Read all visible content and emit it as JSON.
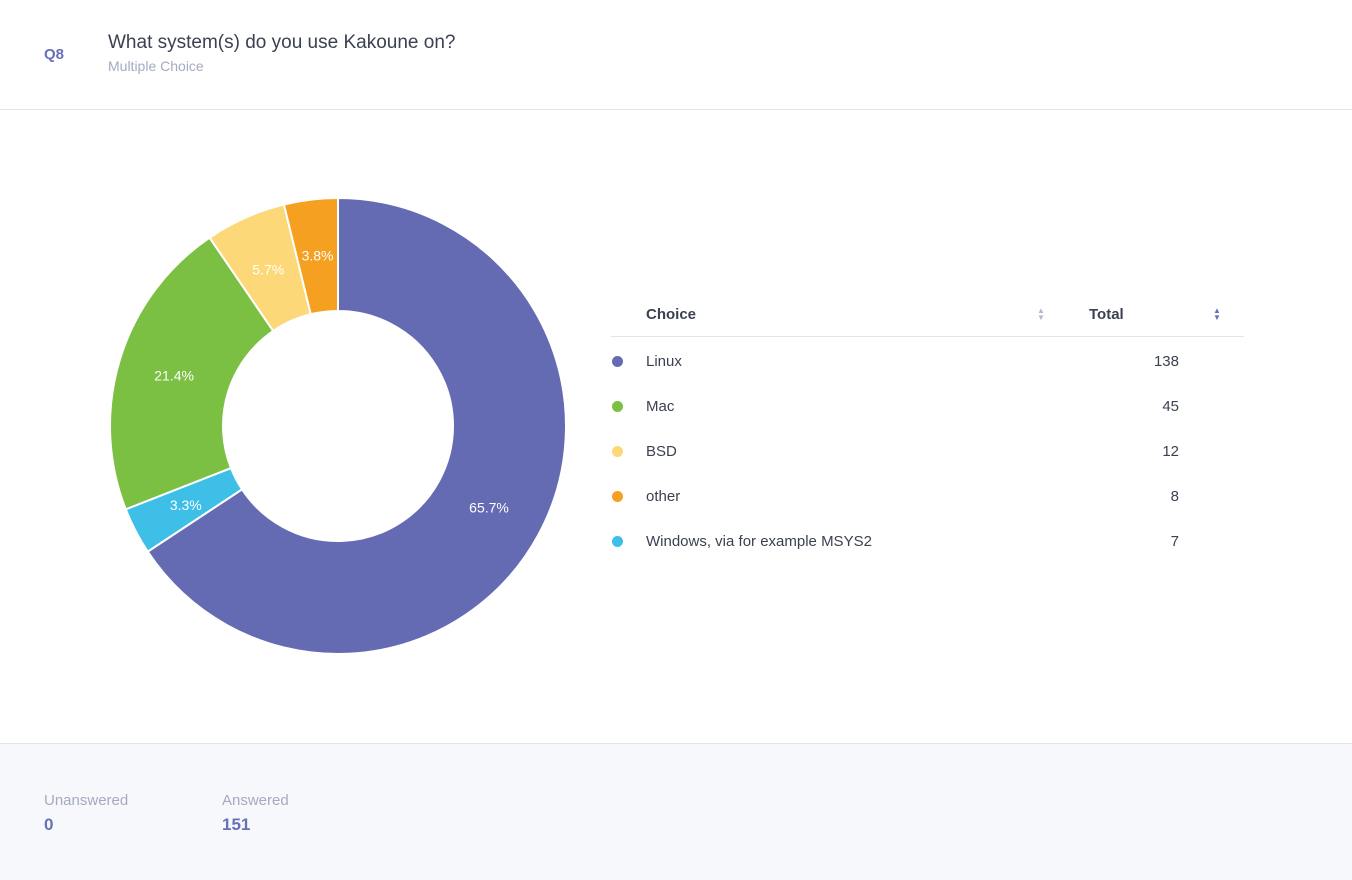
{
  "question": {
    "number": "Q8",
    "title": "What system(s) do you use Kakoune on?",
    "type": "Multiple Choice"
  },
  "table": {
    "headers": [
      "Choice",
      "Total"
    ]
  },
  "chart_data": {
    "type": "pie",
    "donut": true,
    "categories": [
      "Linux",
      "Mac",
      "BSD",
      "other",
      "Windows, via for example MSYS2"
    ],
    "values": [
      138,
      45,
      12,
      8,
      7
    ],
    "percent_labels": [
      "65.7%",
      "21.4%",
      "5.7%",
      "3.8%",
      "3.3%"
    ],
    "colors": [
      "#656bb2",
      "#7bc043",
      "#fdd878",
      "#f5a020",
      "#3dbfe8"
    ],
    "slice_order_clockwise_from_top": [
      "Linux",
      "Windows, via for example MSYS2",
      "Mac",
      "BSD",
      "other"
    ]
  },
  "footer": {
    "unanswered_label": "Unanswered",
    "unanswered": "0",
    "answered_label": "Answered",
    "answered": "151"
  }
}
